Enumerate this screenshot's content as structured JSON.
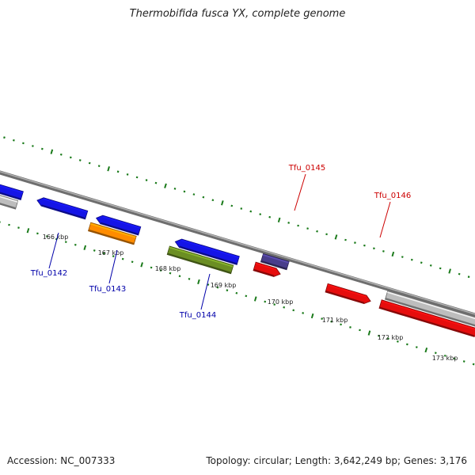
{
  "title": "Thermobifida fusca YX, complete genome",
  "footer": {
    "accession": "Accession: NC_007333",
    "summary": "Topology: circular; Length: 3,642,249 bp; Genes: 3,176"
  },
  "colors": {
    "background": "#ffffff",
    "backbone": "#8c8c8c",
    "tick": "#1a7a1a",
    "label_forward": "#cc0000",
    "label_reverse": "#0000aa",
    "gene_blue": "#1414e6",
    "gene_red": "#e60d0d",
    "gene_orange": "#ff8c00",
    "gene_olive": "#6b8e23",
    "gene_slate": "#483d8b",
    "gene_gray": "#bdbdbd"
  },
  "scale_labels": [
    "166 kbp",
    "167 kbp",
    "168 kbp",
    "169 kbp",
    "170 kbp",
    "171 kbp",
    "172 kbp",
    "173 kbp"
  ],
  "gene_labels": [
    {
      "text": "Tfu_0142",
      "strand": "reverse"
    },
    {
      "text": "Tfu_0143",
      "strand": "reverse"
    },
    {
      "text": "Tfu_0144",
      "strand": "reverse"
    },
    {
      "text": "Tfu_0145",
      "strand": "forward"
    },
    {
      "text": "Tfu_0146",
      "strand": "forward"
    }
  ]
}
